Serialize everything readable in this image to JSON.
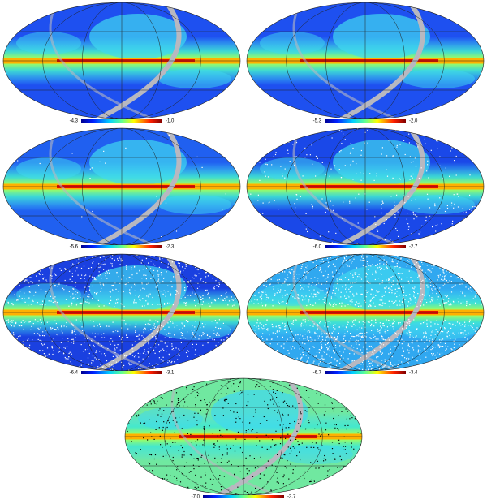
{
  "maps": [
    {
      "min": "-4.3",
      "max": "-1.0"
    },
    {
      "min": "-5.3",
      "max": "-2.0"
    },
    {
      "min": "-5.6",
      "max": "-2.3"
    },
    {
      "min": "-6.0",
      "max": "-2.7"
    },
    {
      "min": "-6.4",
      "max": "-3.1"
    },
    {
      "min": "-6.7",
      "max": "-3.4"
    },
    {
      "min": "-7.0",
      "max": "-3.7"
    }
  ]
}
